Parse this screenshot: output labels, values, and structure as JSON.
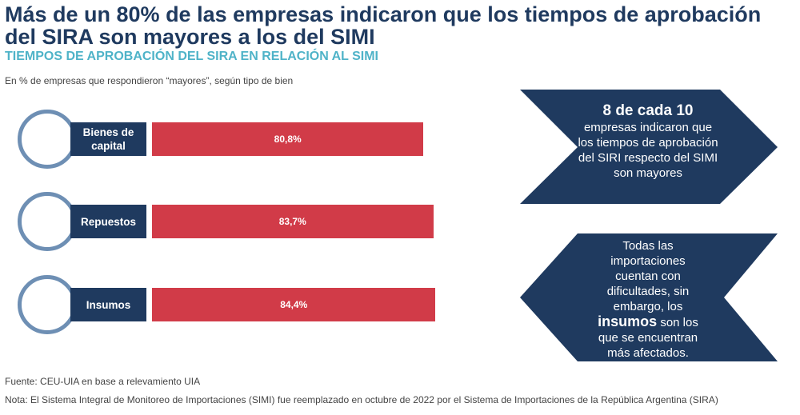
{
  "chart_data": {
    "type": "bar",
    "title": "Más de un 80% de las empresas indicaron que los tiempos de aprobación del SIRA son mayores a los del SIMI",
    "subtitle": "TIEMPOS DE APROBACIÓN DEL SIRA EN RELACIÓN AL SIMI",
    "unit_note": "En % de empresas que respondieron “mayores”, según tipo de bien",
    "categories": [
      "Bienes de capital",
      "Repuestos",
      "Insumos"
    ],
    "values": [
      80.8,
      83.7,
      84.4
    ],
    "value_labels": [
      "80,8%",
      "83,7%",
      "84,4%"
    ],
    "color": "#d13b48",
    "callouts": [
      {
        "bold": "8 de cada 10",
        "text": "empresas indicaron que los tiempos de aprobación del SIRI respecto del SIMI son mayores"
      },
      {
        "before": "Todas las importaciones cuentan con dificultades, sin embargo, los",
        "bold": "insumos",
        "after": "son los que se encuentran más afectados."
      }
    ],
    "source": "Fuente: CEU-UIA en base a relevamiento UIA",
    "note": "Nota: El Sistema Integral de Monitoreo de Importaciones (SIMI) fue reemplazado en octubre de 2022 por el Sistema de Importaciones de la República Argentina (SIRA)"
  }
}
